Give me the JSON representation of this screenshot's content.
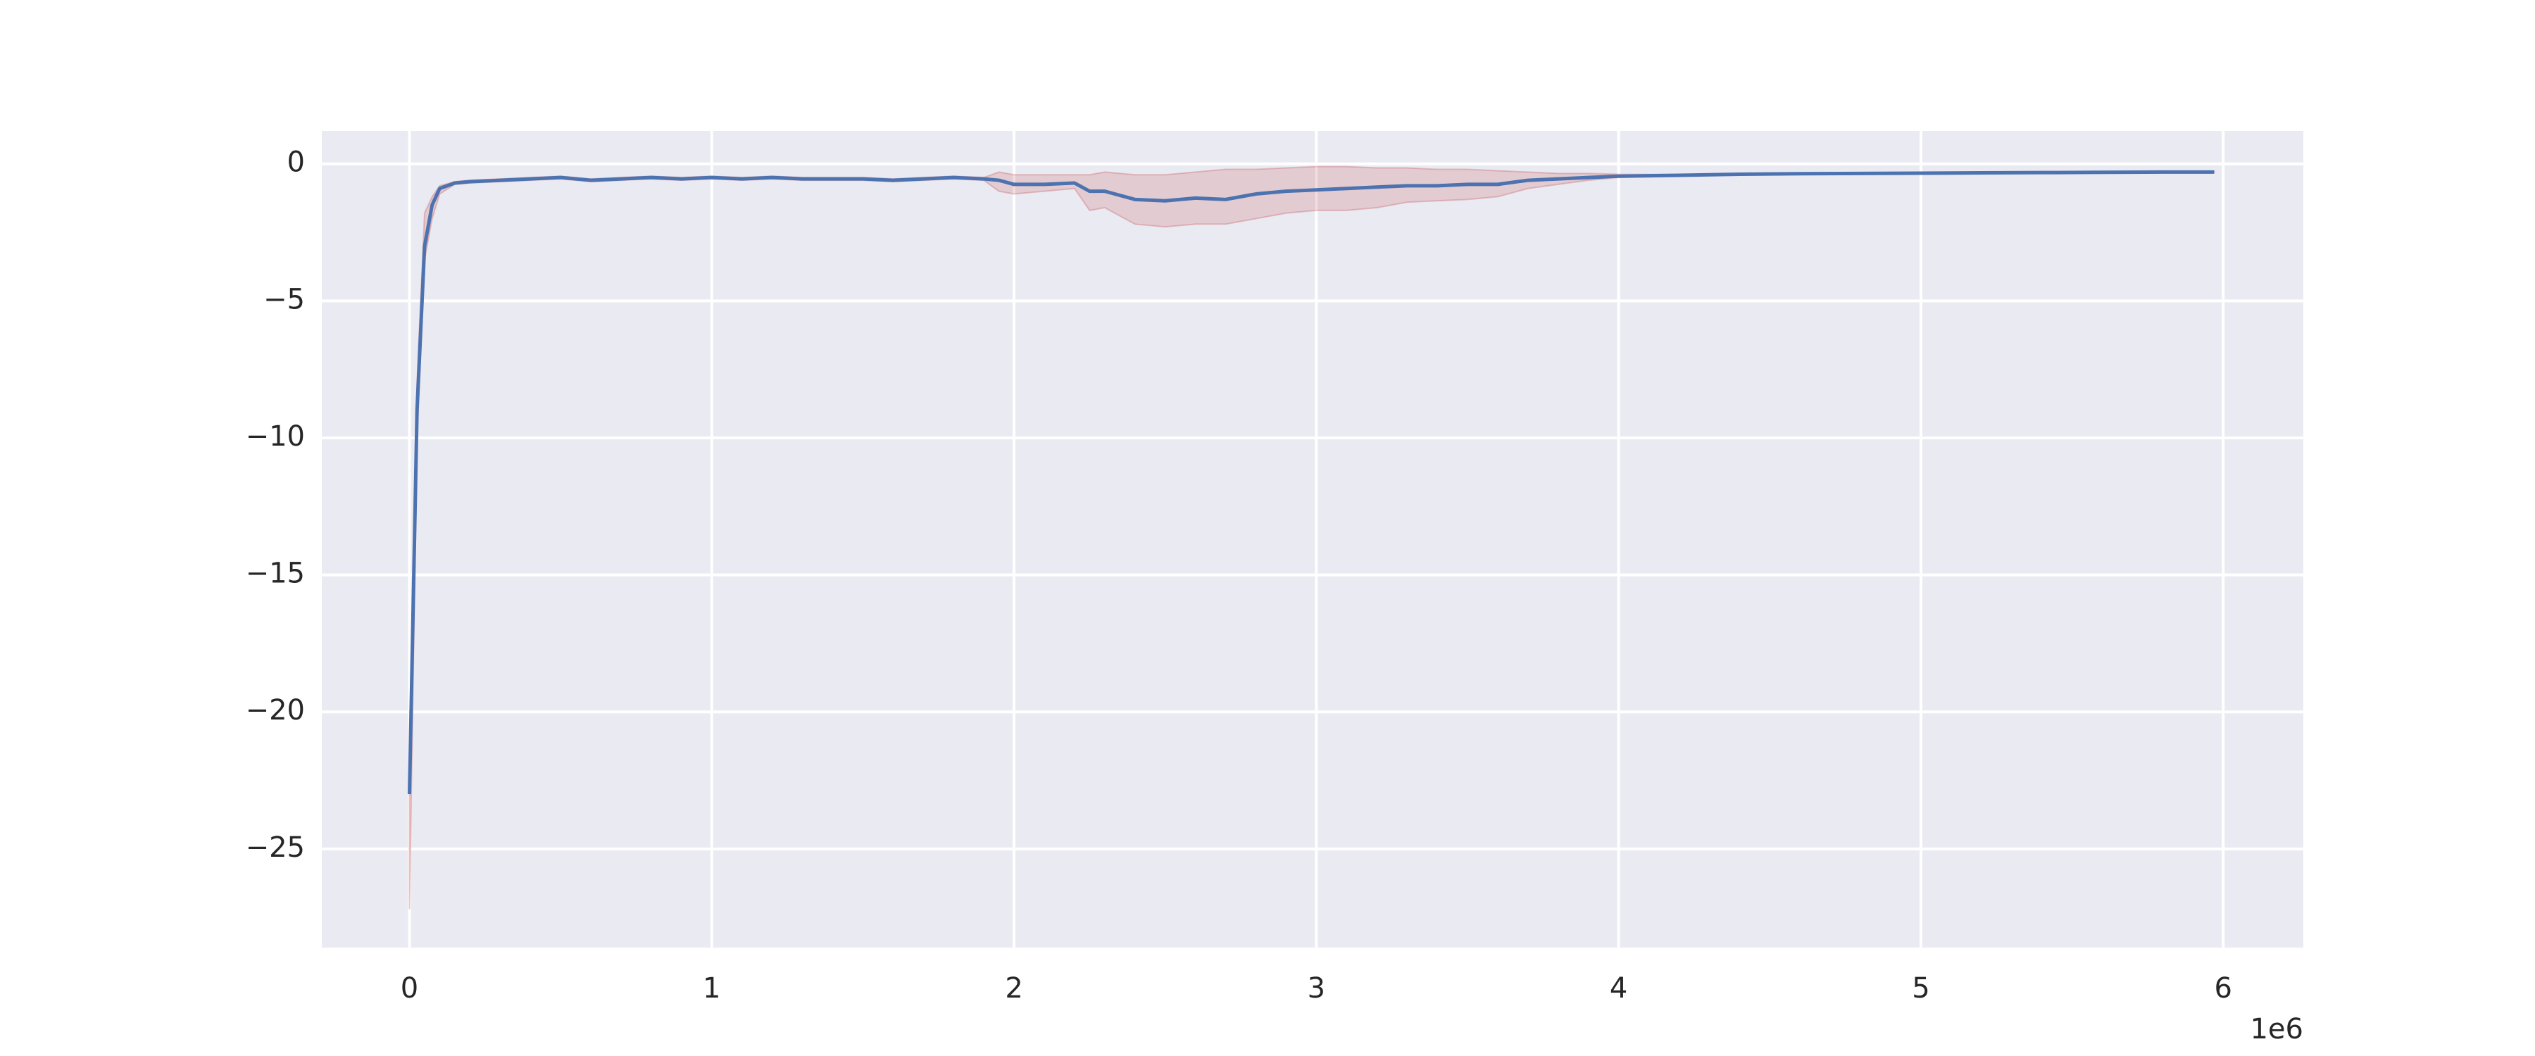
{
  "chart_data": {
    "type": "line",
    "x": [
      0,
      25000,
      50000,
      75000,
      100000,
      150000,
      200000,
      300000,
      400000,
      500000,
      600000,
      700000,
      800000,
      900000,
      1000000,
      1100000,
      1200000,
      1300000,
      1400000,
      1500000,
      1600000,
      1700000,
      1800000,
      1900000,
      1950000,
      2000000,
      2100000,
      2200000,
      2250000,
      2300000,
      2400000,
      2500000,
      2600000,
      2700000,
      2800000,
      2900000,
      3000000,
      3100000,
      3200000,
      3300000,
      3400000,
      3500000,
      3600000,
      3700000,
      3800000,
      3900000,
      4000000,
      4200000,
      4400000,
      4600000,
      4800000,
      5000000,
      5200000,
      5400000,
      5600000,
      5800000,
      5970000
    ],
    "line": {
      "color": "#4c72b0",
      "values": [
        -23,
        -9,
        -3,
        -1.5,
        -0.9,
        -0.7,
        -0.65,
        -0.6,
        -0.55,
        -0.5,
        -0.6,
        -0.55,
        -0.5,
        -0.55,
        -0.5,
        -0.55,
        -0.5,
        -0.55,
        -0.55,
        -0.55,
        -0.6,
        -0.55,
        -0.5,
        -0.55,
        -0.6,
        -0.75,
        -0.75,
        -0.7,
        -1.0,
        -1.0,
        -1.3,
        -1.35,
        -1.25,
        -1.3,
        -1.1,
        -1.0,
        -0.95,
        -0.9,
        -0.85,
        -0.8,
        -0.8,
        -0.75,
        -0.75,
        -0.6,
        -0.55,
        -0.5,
        -0.45,
        -0.42,
        -0.38,
        -0.36,
        -0.35,
        -0.34,
        -0.33,
        -0.32,
        -0.31,
        -0.3,
        -0.3
      ]
    },
    "band": {
      "color": "#c44e52",
      "lower": [
        -27.2,
        -10,
        -3.5,
        -2,
        -1.1,
        -0.75,
        -0.7,
        -0.65,
        -0.6,
        -0.55,
        -0.65,
        -0.6,
        -0.55,
        -0.6,
        -0.55,
        -0.6,
        -0.55,
        -0.6,
        -0.6,
        -0.6,
        -0.65,
        -0.6,
        -0.55,
        -0.6,
        -1.0,
        -1.1,
        -1.0,
        -0.9,
        -1.7,
        -1.6,
        -2.2,
        -2.3,
        -2.2,
        -2.2,
        -2.0,
        -1.8,
        -1.7,
        -1.7,
        -1.6,
        -1.4,
        -1.35,
        -1.3,
        -1.2,
        -0.9,
        -0.75,
        -0.6,
        -0.5,
        -0.45,
        -0.4,
        -0.38,
        -0.37,
        -0.36,
        -0.35,
        -0.34,
        -0.33,
        -0.32,
        -0.32
      ],
      "upper": [
        -22.8,
        -8,
        -1.8,
        -1.2,
        -0.8,
        -0.65,
        -0.6,
        -0.55,
        -0.5,
        -0.45,
        -0.55,
        -0.5,
        -0.45,
        -0.5,
        -0.45,
        -0.5,
        -0.45,
        -0.5,
        -0.5,
        -0.5,
        -0.55,
        -0.5,
        -0.45,
        -0.5,
        -0.3,
        -0.4,
        -0.4,
        -0.4,
        -0.4,
        -0.3,
        -0.4,
        -0.4,
        -0.3,
        -0.2,
        -0.2,
        -0.15,
        -0.1,
        -0.1,
        -0.15,
        -0.15,
        -0.2,
        -0.2,
        -0.25,
        -0.3,
        -0.35,
        -0.35,
        -0.38,
        -0.39,
        -0.36,
        -0.34,
        -0.33,
        -0.32,
        -0.31,
        -0.3,
        -0.29,
        -0.28,
        -0.28
      ]
    },
    "xlim": [
      -290000,
      6265000
    ],
    "ylim": [
      -28.6,
      1.2
    ],
    "xticks": [
      0,
      {
        "value": 1000000,
        "label": "1"
      },
      {
        "value": 2000000,
        "label": "2"
      },
      {
        "value": 3000000,
        "label": "3"
      },
      {
        "value": 4000000,
        "label": "4"
      },
      {
        "value": 5000000,
        "label": "5"
      },
      {
        "value": 6000000,
        "label": "6"
      }
    ],
    "yticks": [
      0,
      {
        "value": -5,
        "label": "−5"
      },
      {
        "value": -10,
        "label": "−10"
      },
      {
        "value": -15,
        "label": "−15"
      },
      {
        "value": -20,
        "label": "−20"
      },
      {
        "value": -25,
        "label": "−25"
      }
    ],
    "x_offset_label": "1e6",
    "grid": true
  }
}
